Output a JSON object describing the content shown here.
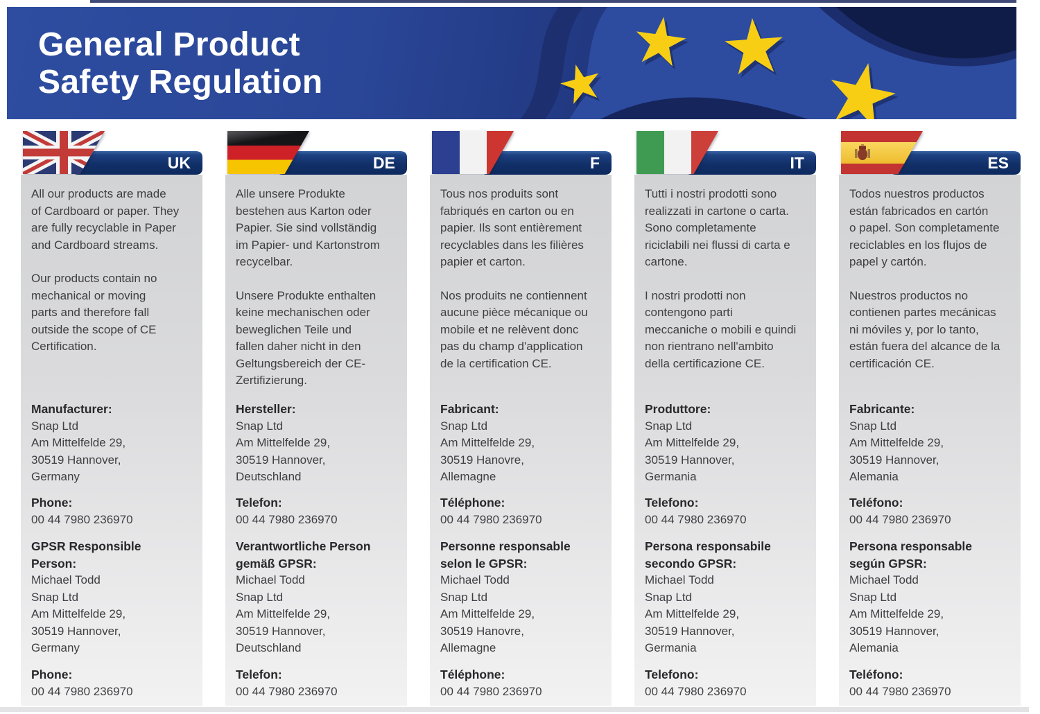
{
  "header": {
    "title": "General Product\nSafety Regulation"
  },
  "colors": {
    "header_blue": "#2d4ca0",
    "header_dark": "#16245c",
    "banner_navy": "#123068",
    "star_yellow": "#f7ce14",
    "panel_gray": "#d9dadc",
    "body_text": "#3f3e41"
  },
  "columns": [
    {
      "code": "UK",
      "flag": "uk",
      "para1": "All our products are made\nof Cardboard or paper. They\nare fully recyclable in Paper\nand Cardboard streams.",
      "para2": "Our products contain no\nmechanical or moving\nparts and therefore fall\noutside the scope of CE\nCertification.",
      "manufacturer_label": "Manufacturer:",
      "manufacturer_address": "Snap Ltd\nAm Mittelfelde 29,\n30519 Hannover,\nGermany",
      "phone_label": "Phone:",
      "phone_number": "00 44 7980 236970",
      "gpsr_label": "GPSR Responsible\nPerson:",
      "gpsr_person": "Michael Todd\nSnap Ltd\nAm Mittelfelde 29,\n30519 Hannover,\nGermany",
      "phone_label2": "Phone:",
      "phone_number2": "00 44 7980 236970"
    },
    {
      "code": "DE",
      "flag": "de",
      "para1": "Alle unsere Produkte\nbestehen aus Karton oder\nPapier. Sie sind vollständig\nim Papier- und Kartonstrom\nrecycelbar.",
      "para2": "Unsere Produkte enthalten\nkeine mechanischen oder\nbeweglichen Teile und\nfallen daher nicht in den\nGeltungsbereich der CE-\nZertifizierung.",
      "manufacturer_label": "Hersteller:",
      "manufacturer_address": "Snap Ltd\nAm Mittelfelde 29,\n30519 Hannover,\nDeutschland",
      "phone_label": "Telefon:",
      "phone_number": "00 44 7980 236970",
      "gpsr_label": "Verantwortliche Person\ngemäß GPSR:",
      "gpsr_person": "Michael Todd\nSnap Ltd\nAm Mittelfelde 29,\n30519 Hannover,\nDeutschland",
      "phone_label2": "Telefon:",
      "phone_number2": "00 44 7980 236970"
    },
    {
      "code": "F",
      "flag": "fr",
      "para1": "Tous nos produits sont\nfabriqués en carton ou en\npapier. Ils sont entièrement\nrecyclables dans les filières\npapier et carton.",
      "para2": "Nos produits ne contiennent\naucune pièce mécanique ou\nmobile et ne relèvent donc\npas du champ d'application\nde la certification CE.",
      "manufacturer_label": "Fabricant:",
      "manufacturer_address": "Snap Ltd\nAm Mittelfelde 29,\n30519 Hanovre,\nAllemagne",
      "phone_label": "Téléphone:",
      "phone_number": "00 44 7980 236970",
      "gpsr_label": "Personne responsable\nselon le GPSR:",
      "gpsr_person": "Michael Todd\nSnap Ltd\nAm Mittelfelde 29,\n30519 Hanovre,\nAllemagne",
      "phone_label2": "Téléphone:",
      "phone_number2": "00 44 7980 236970"
    },
    {
      "code": "IT",
      "flag": "it",
      "para1": "Tutti i nostri prodotti sono\nrealizzati in cartone o carta.\nSono completamente\nriciclabili nei flussi di carta e\ncartone.",
      "para2": "I nostri prodotti non\ncontengono parti\nmeccaniche o mobili e quindi\nnon rientrano nell'ambito\ndella certificazione CE.",
      "manufacturer_label": "Produttore:",
      "manufacturer_address": "Snap Ltd\nAm Mittelfelde 29,\n30519 Hannover,\nGermania",
      "phone_label": "Telefono:",
      "phone_number": "00 44 7980 236970",
      "gpsr_label": "Persona responsabile\nsecondo GPSR:",
      "gpsr_person": "Michael Todd\nSnap Ltd\nAm Mittelfelde 29,\n30519 Hannover,\nGermania",
      "phone_label2": "Telefono:",
      "phone_number2": "00 44 7980 236970"
    },
    {
      "code": "ES",
      "flag": "es",
      "para1": "Todos nuestros productos\nestán fabricados en cartón\no papel. Son completamente\nreciclables en los flujos de\npapel y cartón.",
      "para2": "Nuestros productos no\ncontienen partes mecánicas\nni móviles y, por lo tanto,\nestán fuera del alcance de la\ncertificación CE.",
      "manufacturer_label": "Fabricante:",
      "manufacturer_address": "Snap Ltd\nAm Mittelfelde 29,\n30519 Hannover,\nAlemania",
      "phone_label": "Teléfono:",
      "phone_number": "00 44 7980 236970",
      "gpsr_label": "Persona responsable\nsegún GPSR:",
      "gpsr_person": "Michael Todd\nSnap Ltd\nAm Mittelfelde 29,\n30519 Hannover,\nAlemania",
      "phone_label2": "Teléfono:",
      "phone_number2": "00 44 7980 236970"
    }
  ]
}
